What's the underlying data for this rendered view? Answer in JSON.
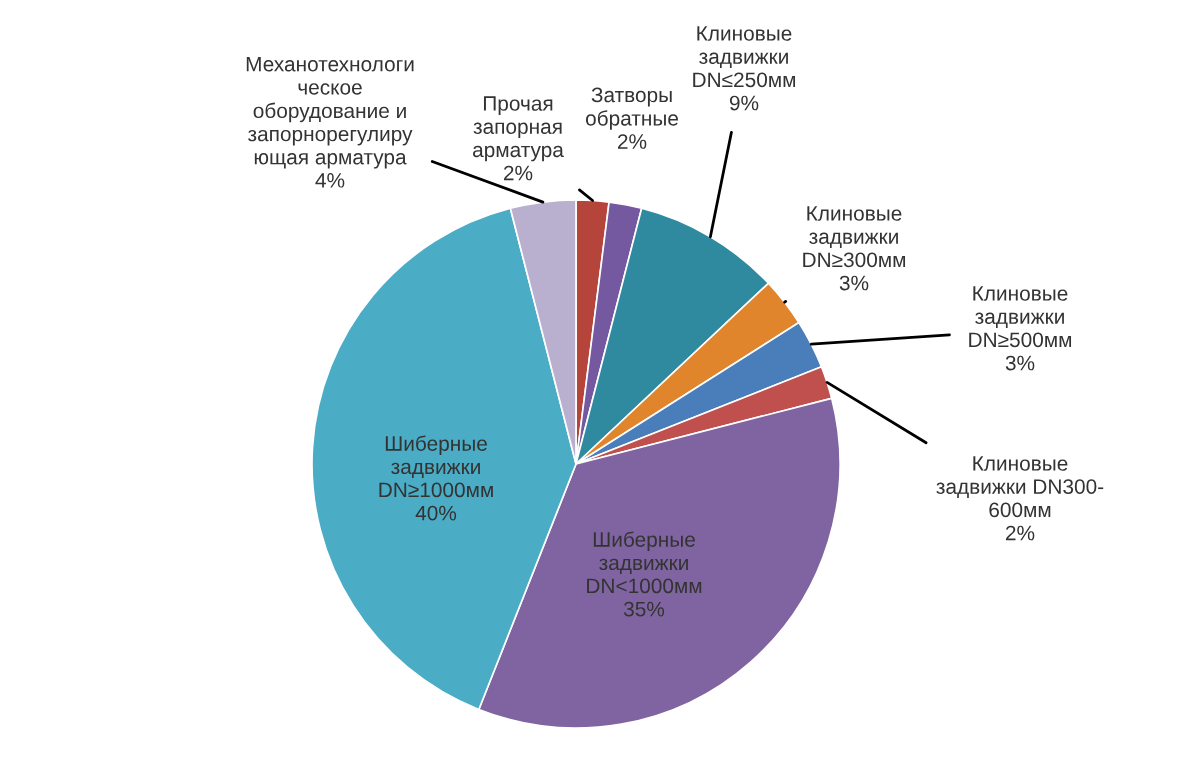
{
  "chart_data": {
    "type": "pie",
    "categories": [
      "Прочая\nзапорная\nарматура",
      "Затворы\nобратные",
      "Клиновые\nзадвижки\nDN≤250мм",
      "Клиновые\nзадвижки\nDN≥300мм",
      "Клиновые\nзадвижки\nDN≥500мм",
      "Клиновые\nзадвижки DN300-\n600мм",
      "Шиберные\nзадвижки\nDN<1000мм",
      "Шиберные\nзадвижки\nDN≥1000мм",
      "Механотехнологи\nческое\nоборудование и\nзапорнорегулиру\nющая арматура"
    ],
    "values": [
      2,
      2,
      9,
      3,
      3,
      2,
      35,
      40,
      4
    ],
    "value_labels": [
      "2%",
      "2%",
      "9%",
      "3%",
      "3%",
      "2%",
      "35%",
      "40%",
      "4%"
    ],
    "colors": [
      "#b5443a",
      "#7458a0",
      "#2f8aa0",
      "#e0852c",
      "#4a7ebb",
      "#c0504d",
      "#8064a2",
      "#4bacc6",
      "#b9b0d0"
    ],
    "legend": false
  }
}
